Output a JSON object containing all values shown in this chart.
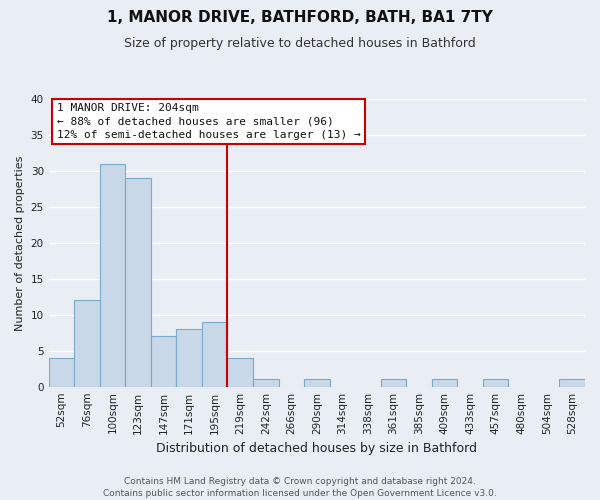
{
  "title": "1, MANOR DRIVE, BATHFORD, BATH, BA1 7TY",
  "subtitle": "Size of property relative to detached houses in Bathford",
  "xlabel": "Distribution of detached houses by size in Bathford",
  "ylabel": "Number of detached properties",
  "bin_labels": [
    "52sqm",
    "76sqm",
    "100sqm",
    "123sqm",
    "147sqm",
    "171sqm",
    "195sqm",
    "219sqm",
    "242sqm",
    "266sqm",
    "290sqm",
    "314sqm",
    "338sqm",
    "361sqm",
    "385sqm",
    "409sqm",
    "433sqm",
    "457sqm",
    "480sqm",
    "504sqm",
    "528sqm"
  ],
  "bar_heights": [
    4,
    12,
    31,
    29,
    7,
    8,
    9,
    4,
    1,
    0,
    1,
    0,
    0,
    1,
    0,
    1,
    0,
    1,
    0,
    0,
    1
  ],
  "bar_color": "#c8d8e8",
  "bar_edge_color": "#7aaac8",
  "vline_x": 6.5,
  "vline_color": "#cc0000",
  "ylim": [
    0,
    40
  ],
  "yticks": [
    0,
    5,
    10,
    15,
    20,
    25,
    30,
    35,
    40
  ],
  "annotation_title": "1 MANOR DRIVE: 204sqm",
  "annotation_line1": "← 88% of detached houses are smaller (96)",
  "annotation_line2": "12% of semi-detached houses are larger (13) →",
  "annotation_box_facecolor": "#ffffff",
  "annotation_box_edgecolor": "#cc0000",
  "footer_line1": "Contains HM Land Registry data © Crown copyright and database right 2024.",
  "footer_line2": "Contains public sector information licensed under the Open Government Licence v3.0.",
  "background_color": "#e8eef4",
  "grid_color": "#ffffff",
  "title_fontsize": 11,
  "subtitle_fontsize": 9,
  "ylabel_fontsize": 8,
  "xlabel_fontsize": 9,
  "tick_fontsize": 7.5,
  "annotation_fontsize": 8,
  "footer_fontsize": 6.5
}
